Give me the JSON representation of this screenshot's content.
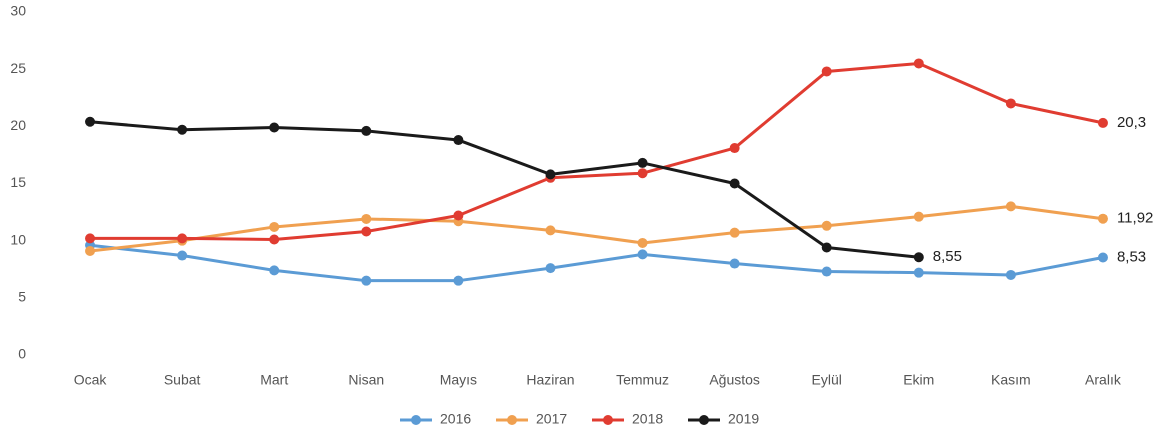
{
  "chart_data": {
    "type": "line",
    "categories": [
      "Ocak",
      "Subat",
      "Mart",
      "Nisan",
      "Mayıs",
      "Haziran",
      "Temmuz",
      "Ağustos",
      "Eylül",
      "Ekim",
      "Kasım",
      "Aralık"
    ],
    "series": [
      {
        "name": "2016",
        "color": "#5b9bd5",
        "values": [
          9.6,
          8.7,
          7.4,
          6.5,
          6.5,
          7.6,
          8.8,
          8.0,
          7.3,
          7.2,
          7.0,
          8.53
        ],
        "value_labels": [
          null,
          null,
          null,
          null,
          null,
          null,
          null,
          null,
          null,
          null,
          null,
          "8,53"
        ]
      },
      {
        "name": "2017",
        "color": "#f0a050",
        "values": [
          9.1,
          10.0,
          11.2,
          11.9,
          11.7,
          10.9,
          9.8,
          10.7,
          11.3,
          12.1,
          13.0,
          11.92
        ],
        "value_labels": [
          null,
          null,
          null,
          null,
          null,
          null,
          null,
          null,
          null,
          null,
          null,
          "11,92"
        ]
      },
      {
        "name": "2018",
        "color": "#e03c31",
        "values": [
          10.2,
          10.2,
          10.1,
          10.8,
          12.2,
          15.5,
          15.9,
          18.1,
          24.8,
          25.5,
          22.0,
          20.3
        ],
        "value_labels": [
          null,
          null,
          null,
          null,
          null,
          null,
          null,
          null,
          null,
          null,
          null,
          "20,3"
        ]
      },
      {
        "name": "2019",
        "color": "#1a1a1a",
        "values": [
          20.4,
          19.7,
          19.9,
          19.6,
          18.8,
          15.8,
          16.8,
          15.0,
          9.4,
          8.55,
          null,
          null
        ],
        "value_labels": [
          null,
          null,
          null,
          null,
          null,
          null,
          null,
          null,
          null,
          "8,55",
          null,
          null
        ]
      }
    ],
    "ylim": [
      0,
      30
    ],
    "yticks": [
      0,
      5,
      10,
      15,
      20,
      25,
      30
    ],
    "grid": false,
    "legend": "bottom"
  }
}
